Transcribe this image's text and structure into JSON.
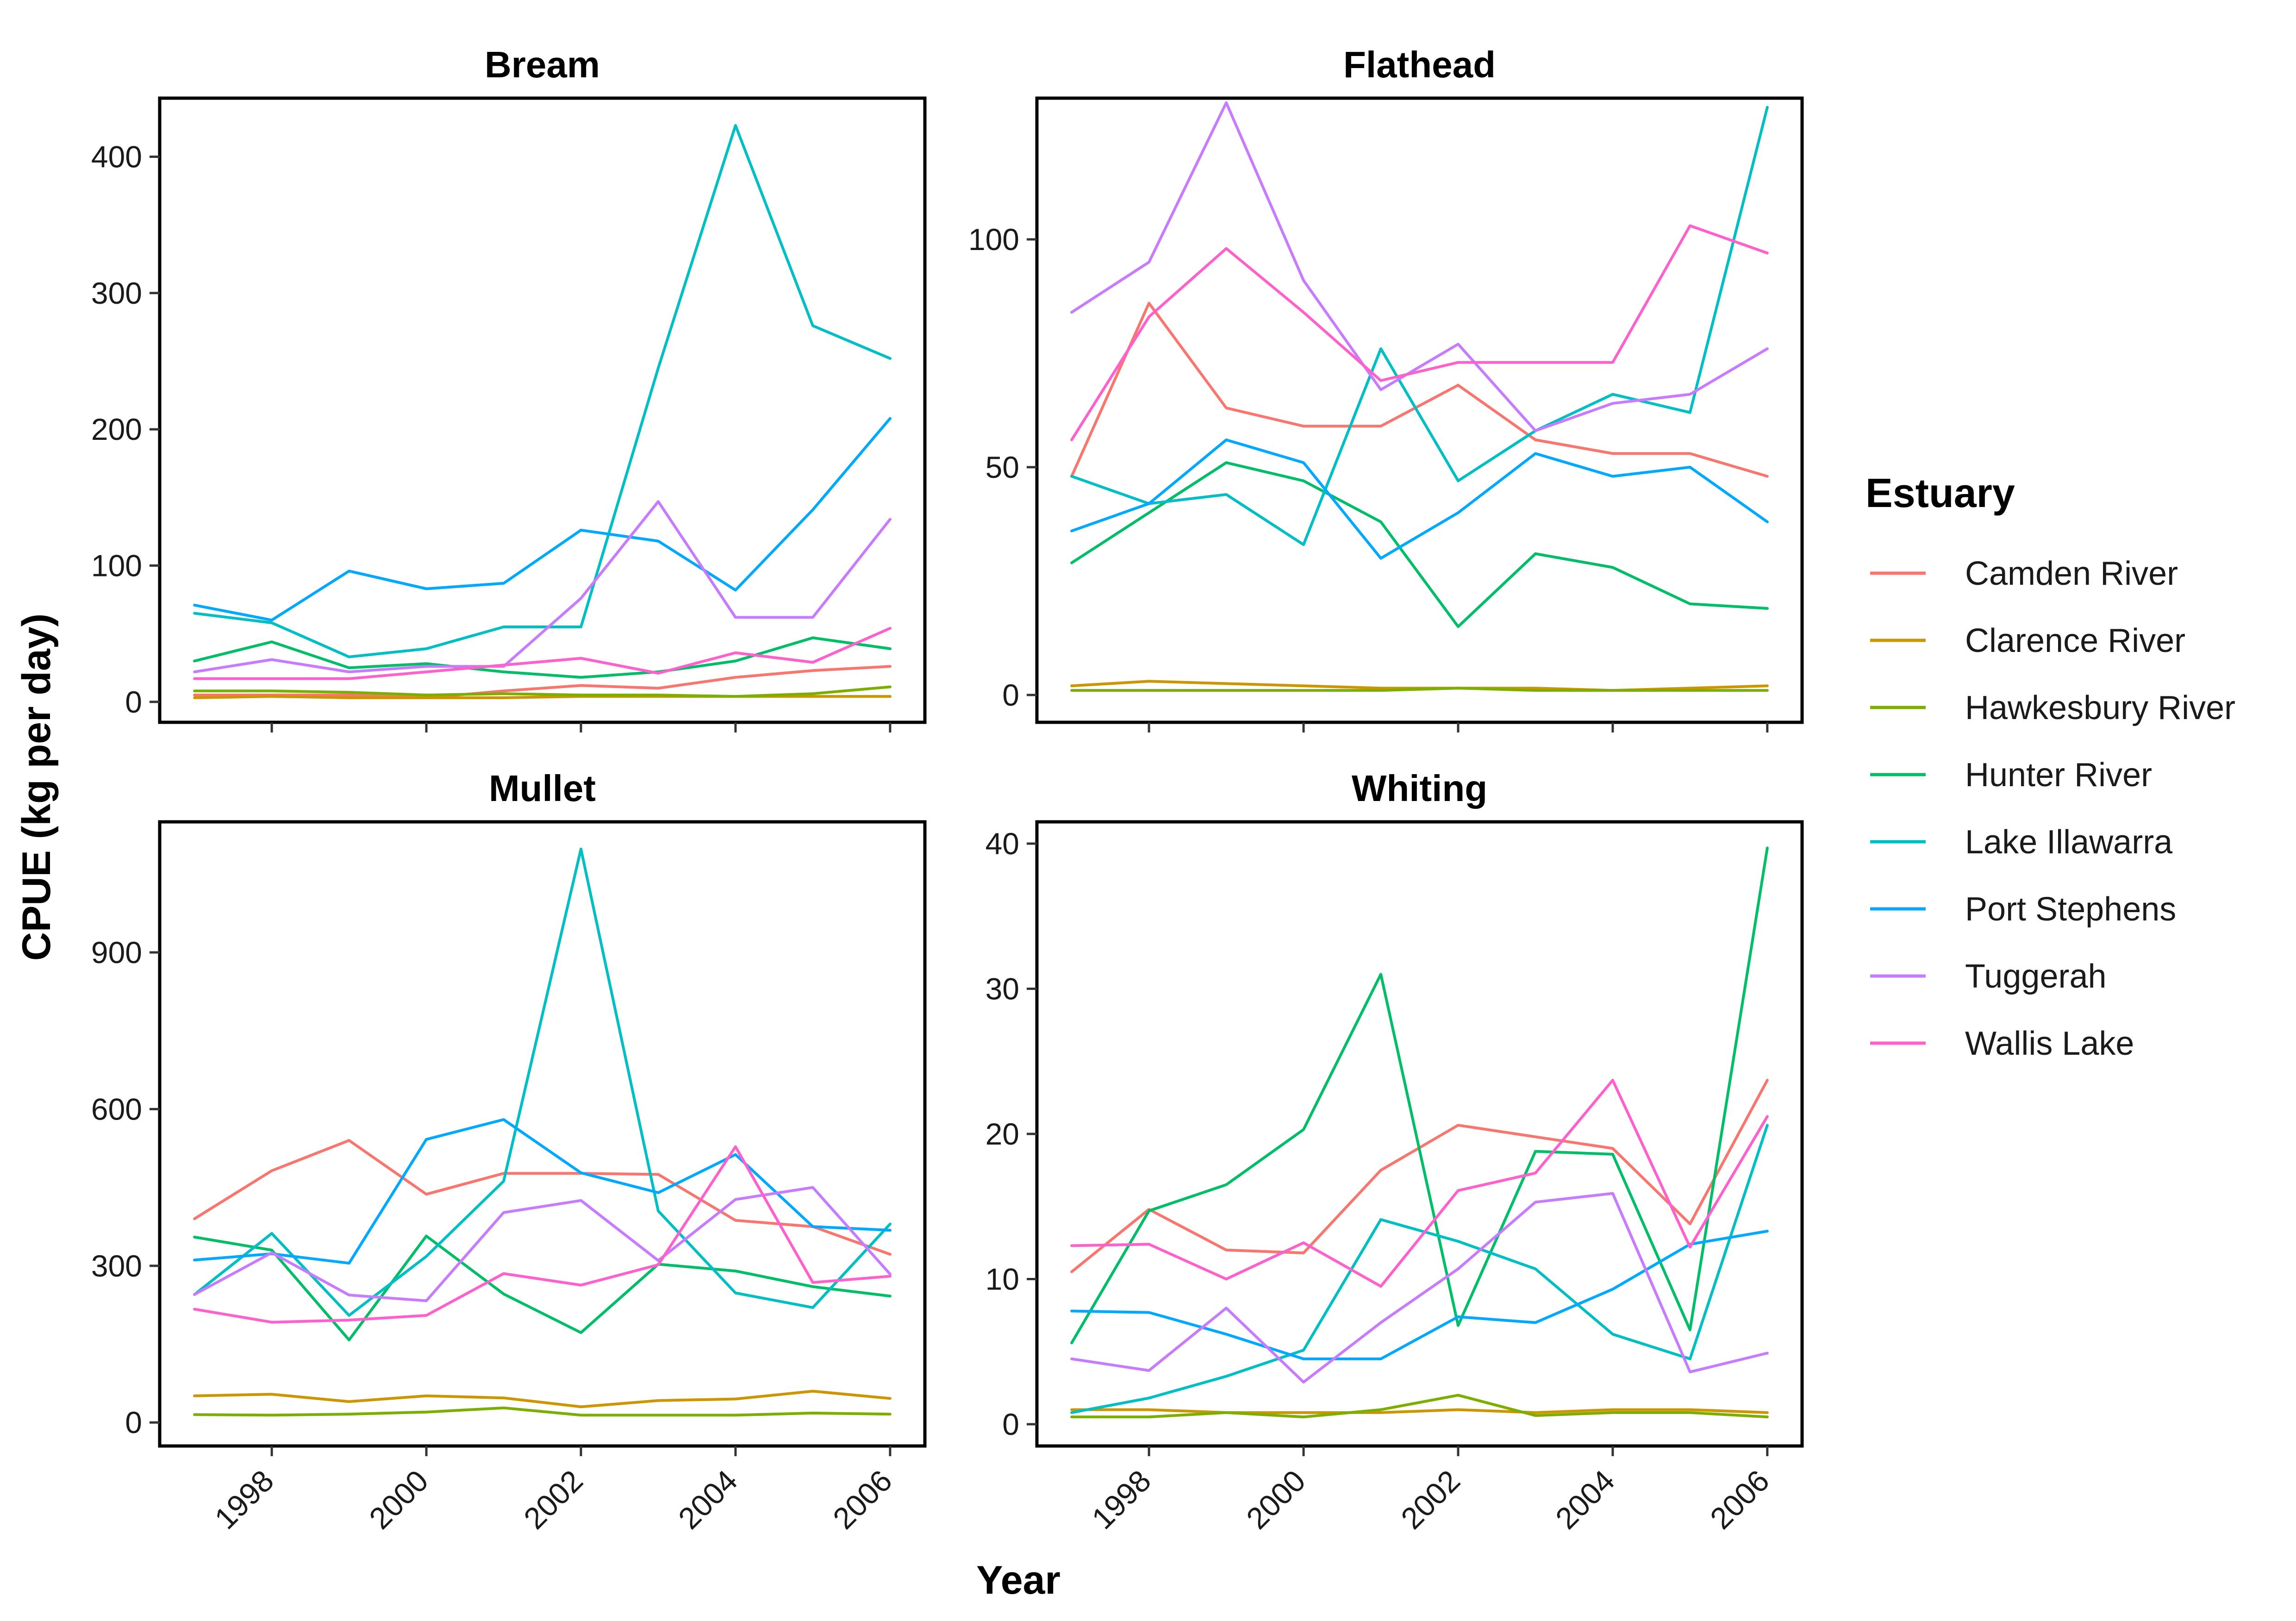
{
  "chart_data": {
    "type": "line",
    "xlabel": "Year",
    "ylabel": "CPUE (kg per day)",
    "x": [
      1997,
      1998,
      1999,
      2000,
      2001,
      2002,
      2003,
      2004,
      2005,
      2006
    ],
    "x_ticks": [
      1998,
      2000,
      2002,
      2004,
      2006
    ],
    "legend": {
      "title": "Estuary",
      "placement": "right",
      "entries": [
        "Camden River",
        "Clarence River",
        "Hawkesbury River",
        "Hunter River",
        "Lake Illawarra",
        "Port Stephens",
        "Tuggerah",
        "Wallis Lake"
      ]
    },
    "colors": {
      "Camden River": "#F8766D",
      "Clarence River": "#CD9600",
      "Hawkesbury River": "#7CAE00",
      "Hunter River": "#00BE67",
      "Lake Illawarra": "#00BFC4",
      "Port Stephens": "#00A9FF",
      "Tuggerah": "#C77CFF",
      "Wallis Lake": "#FF61CC"
    },
    "panels": [
      {
        "title": "Bream",
        "ylim": [
          -15,
          443
        ],
        "y_ticks": [
          0,
          100,
          200,
          300,
          400
        ],
        "series": [
          {
            "name": "Camden River",
            "values": [
              5,
              5,
              5,
              3,
              8,
              12,
              10,
              18,
              23,
              26
            ]
          },
          {
            "name": "Clarence River",
            "values": [
              3,
              4,
              3,
              3,
              3,
              4,
              4,
              4,
              4,
              4
            ]
          },
          {
            "name": "Hawkesbury River",
            "values": [
              8,
              8,
              7,
              5,
              6,
              5,
              5,
              4,
              6,
              11
            ]
          },
          {
            "name": "Hunter River",
            "values": [
              30,
              44,
              25,
              28,
              22,
              18,
              22,
              30,
              47,
              39
            ]
          },
          {
            "name": "Lake Illawarra",
            "values": [
              65,
              58,
              33,
              39,
              55,
              55,
              245,
              423,
              276,
              252
            ]
          },
          {
            "name": "Port Stephens",
            "values": [
              71,
              60,
              96,
              83,
              87,
              126,
              118,
              82,
              141,
              208
            ]
          },
          {
            "name": "Tuggerah",
            "values": [
              22,
              31,
              22,
              26,
              26,
              76,
              147,
              62,
              62,
              134
            ]
          },
          {
            "name": "Wallis Lake",
            "values": [
              17,
              17,
              17,
              22,
              27,
              32,
              21,
              36,
              29,
              54
            ]
          }
        ]
      },
      {
        "title": "Flathead",
        "ylim": [
          -6,
          131
        ],
        "y_ticks": [
          0,
          50,
          100
        ],
        "series": [
          {
            "name": "Camden River",
            "values": [
              48,
              86,
              63,
              59,
              59,
              68,
              56,
              53,
              53,
              48
            ]
          },
          {
            "name": "Clarence River",
            "values": [
              2,
              3,
              2.5,
              2,
              1.5,
              1.5,
              1.5,
              1,
              1.5,
              2
            ]
          },
          {
            "name": "Hawkesbury River",
            "values": [
              1,
              1,
              1,
              1,
              1,
              1.5,
              1,
              1,
              1,
              1
            ]
          },
          {
            "name": "Hunter River",
            "values": [
              29,
              40,
              51,
              47,
              38,
              15,
              31,
              28,
              20,
              19
            ]
          },
          {
            "name": "Lake Illawarra",
            "values": [
              48,
              42,
              44,
              33,
              76,
              47,
              58,
              66,
              62,
              129
            ]
          },
          {
            "name": "Port Stephens",
            "values": [
              36,
              42,
              56,
              51,
              30,
              40,
              53,
              48,
              50,
              38
            ]
          },
          {
            "name": "Tuggerah",
            "values": [
              84,
              95,
              130,
              91,
              67,
              77,
              58,
              64,
              66,
              76
            ]
          },
          {
            "name": "Wallis Lake",
            "values": [
              56,
              83,
              98,
              84,
              69,
              73,
              73,
              73,
              103,
              97
            ]
          }
        ]
      },
      {
        "title": "Mullet",
        "ylim": [
          -45,
          1150
        ],
        "y_ticks": [
          0,
          300,
          600,
          900
        ],
        "series": [
          {
            "name": "Camden River",
            "values": [
              390,
              482,
              540,
              437,
              477,
              477,
              475,
              387,
              375,
              322
            ]
          },
          {
            "name": "Clarence River",
            "values": [
              51,
              54,
              40,
              51,
              47,
              30,
              42,
              45,
              60,
              46
            ]
          },
          {
            "name": "Hawkesbury River",
            "values": [
              15,
              14,
              16,
              20,
              28,
              14,
              14,
              14,
              18,
              16
            ]
          },
          {
            "name": "Hunter River",
            "values": [
              355,
              330,
              158,
              357,
              246,
              172,
              303,
              290,
              260,
              242
            ]
          },
          {
            "name": "Lake Illawarra",
            "values": [
              245,
              362,
              205,
              318,
              462,
              1098,
              405,
              248,
              220,
              380
            ]
          },
          {
            "name": "Port Stephens",
            "values": [
              311,
              323,
              305,
              542,
              580,
              478,
              440,
              513,
              375,
              368
            ]
          },
          {
            "name": "Tuggerah",
            "values": [
              245,
              325,
              244,
              233,
              402,
              425,
              310,
              427,
              450,
              284
            ]
          },
          {
            "name": "Wallis Lake",
            "values": [
              217,
              192,
              196,
              205,
              285,
              263,
              302,
              528,
              268,
              280
            ]
          }
        ]
      },
      {
        "title": "Whiting",
        "ylim": [
          -1.5,
          41.5
        ],
        "y_ticks": [
          0,
          10,
          20,
          30,
          40
        ],
        "series": [
          {
            "name": "Camden River",
            "values": [
              10.5,
              14.8,
              12,
              11.8,
              17.5,
              20.6,
              19.8,
              19,
              13.8,
              23.7
            ]
          },
          {
            "name": "Clarence River",
            "values": [
              1,
              1,
              0.8,
              0.8,
              0.8,
              1,
              0.8,
              1,
              1,
              0.8
            ]
          },
          {
            "name": "Hawkesbury River",
            "values": [
              0.5,
              0.5,
              0.8,
              0.5,
              1,
              2,
              0.6,
              0.8,
              0.8,
              0.5
            ]
          },
          {
            "name": "Hunter River",
            "values": [
              5.6,
              14.7,
              16.5,
              20.3,
              31,
              6.8,
              18.8,
              18.6,
              6.5,
              39.7
            ]
          },
          {
            "name": "Lake Illawarra",
            "values": [
              0.8,
              1.8,
              3.3,
              5.1,
              14.1,
              12.6,
              10.7,
              6.2,
              4.5,
              20.6
            ]
          },
          {
            "name": "Port Stephens",
            "values": [
              7.8,
              7.7,
              6.2,
              4.5,
              4.5,
              7.4,
              7,
              9.3,
              12.4,
              13.3
            ]
          },
          {
            "name": "Tuggerah",
            "values": [
              4.5,
              3.7,
              8,
              2.9,
              7,
              10.7,
              15.3,
              15.9,
              3.6,
              4.9
            ]
          },
          {
            "name": "Wallis Lake",
            "values": [
              12.3,
              12.4,
              10,
              12.5,
              9.5,
              16.1,
              17.3,
              23.7,
              12.2,
              21.2
            ]
          }
        ]
      }
    ]
  }
}
